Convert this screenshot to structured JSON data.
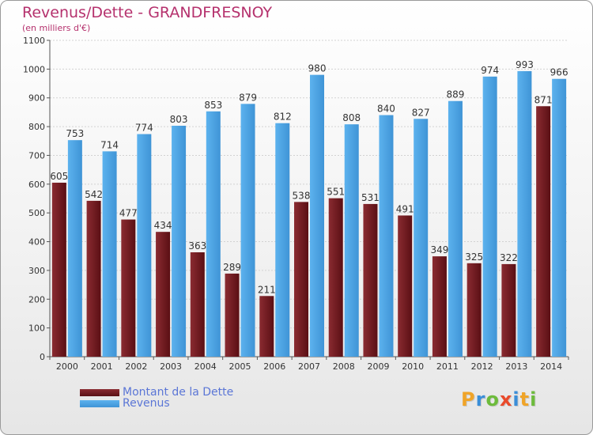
{
  "chart_data": {
    "type": "bar",
    "title": "Revenus/Dette - GRANDFRESNOY",
    "subtitle": "(en milliers d'€)",
    "categories": [
      "2000",
      "2001",
      "2002",
      "2003",
      "2004",
      "2005",
      "2006",
      "2007",
      "2008",
      "2009",
      "2010",
      "2011",
      "2012",
      "2013",
      "2014"
    ],
    "series": [
      {
        "name": "Montant de la Dette",
        "color": "#7a1f25",
        "values": [
          605,
          542,
          477,
          434,
          363,
          289,
          211,
          538,
          551,
          531,
          491,
          349,
          325,
          322,
          871
        ]
      },
      {
        "name": "Revenus",
        "color": "#4ba3e3",
        "values": [
          753,
          714,
          774,
          803,
          853,
          879,
          812,
          980,
          808,
          840,
          827,
          889,
          974,
          993,
          966
        ]
      }
    ],
    "ylim": [
      0,
      1100
    ],
    "yticks": [
      0,
      100,
      200,
      300,
      400,
      500,
      600,
      700,
      800,
      900,
      1000,
      1100
    ],
    "grid": true,
    "legend_position": "bottom-left"
  },
  "logo": {
    "letters": [
      {
        "char": "P",
        "color": "#f0a428"
      },
      {
        "char": "r",
        "color": "#3a8ed8"
      },
      {
        "char": "o",
        "color": "#6dbb3c"
      },
      {
        "char": "x",
        "color": "#e94a2b"
      },
      {
        "char": "i",
        "color": "#3a8ed8"
      },
      {
        "char": "t",
        "color": "#f0a428"
      },
      {
        "char": "i",
        "color": "#6dbb3c"
      }
    ]
  }
}
